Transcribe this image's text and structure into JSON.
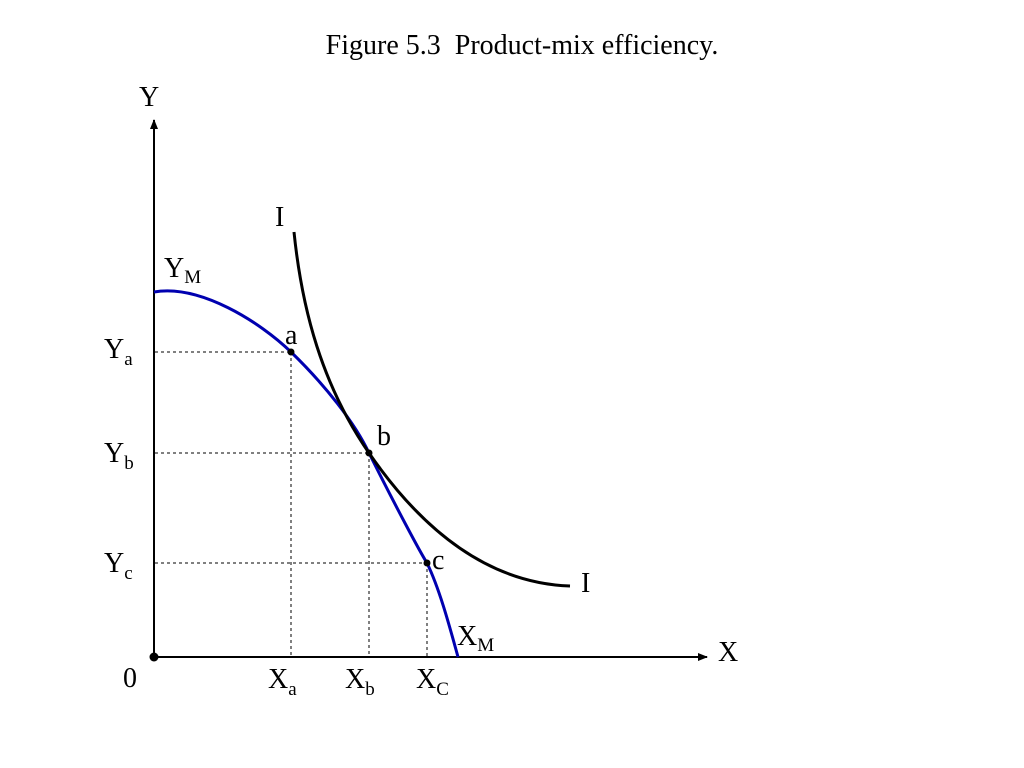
{
  "title": "Figure 5.3  Product-mix efficiency.",
  "axes": {
    "x_label": "X",
    "y_label": "Y",
    "origin_label": "0"
  },
  "curves": {
    "indifference": {
      "label_top": "I",
      "label_bottom": "I",
      "color": "#000000"
    },
    "ppf": {
      "y_intercept": {
        "main": "Y",
        "sub": "M"
      },
      "x_intercept": {
        "main": "X",
        "sub": "M"
      },
      "color": "#0000b0"
    }
  },
  "points": {
    "a": {
      "label": "a"
    },
    "b": {
      "label": "b"
    },
    "c": {
      "label": "c"
    }
  },
  "x_ticks": [
    {
      "main": "X",
      "sub": "a"
    },
    {
      "main": "X",
      "sub": "b"
    },
    {
      "main": "X",
      "sub": "C"
    }
  ],
  "y_ticks": [
    {
      "main": "Y",
      "sub": "a"
    },
    {
      "main": "Y",
      "sub": "b"
    },
    {
      "main": "Y",
      "sub": "c"
    }
  ]
}
